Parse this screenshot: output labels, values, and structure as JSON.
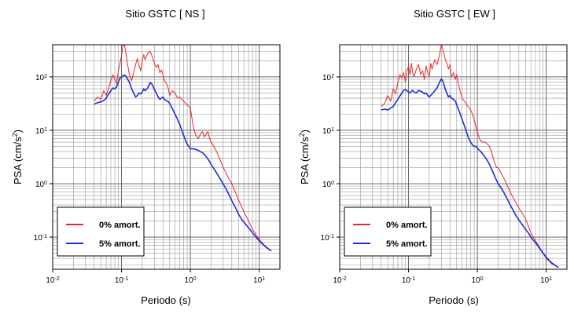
{
  "chart_data": [
    {
      "type": "line",
      "title": "Sitio GSTC [ NS ]",
      "xlabel": "Periodo (s)",
      "ylabel_main": "PSA (cm/s",
      "ylabel_sup": "2",
      "ylabel_end": ")",
      "x_scale": "log",
      "y_scale": "log",
      "xlim": [
        0.01,
        20
      ],
      "ylim": [
        0.025,
        400
      ],
      "grid": true,
      "legend_position": "bottom-left",
      "x_ticks": [
        {
          "value": 0.01,
          "base": "10",
          "exp": "-2"
        },
        {
          "value": 0.1,
          "base": "10",
          "exp": "-1"
        },
        {
          "value": 1,
          "base": "10",
          "exp": "0"
        },
        {
          "value": 10,
          "base": "10",
          "exp": "1"
        }
      ],
      "y_ticks": [
        {
          "value": 0.1,
          "base": "10",
          "exp": "-1"
        },
        {
          "value": 1,
          "base": "10",
          "exp": "0"
        },
        {
          "value": 10,
          "base": "10",
          "exp": "1"
        },
        {
          "value": 100,
          "base": "10",
          "exp": "2"
        }
      ],
      "series": [
        {
          "name": "0% amort.",
          "color": "#e8262b",
          "x": [
            0.04,
            0.045,
            0.05,
            0.055,
            0.06,
            0.065,
            0.07,
            0.075,
            0.08,
            0.085,
            0.09,
            0.095,
            0.1,
            0.105,
            0.11,
            0.115,
            0.12,
            0.13,
            0.14,
            0.15,
            0.16,
            0.17,
            0.18,
            0.19,
            0.2,
            0.21,
            0.22,
            0.24,
            0.26,
            0.28,
            0.3,
            0.32,
            0.34,
            0.36,
            0.38,
            0.4,
            0.42,
            0.45,
            0.48,
            0.5,
            0.55,
            0.6,
            0.65,
            0.7,
            0.75,
            0.8,
            0.85,
            0.9,
            0.95,
            1.0,
            1.1,
            1.2,
            1.3,
            1.4,
            1.5,
            1.6,
            1.7,
            1.8,
            1.9,
            2.0,
            2.2,
            2.4,
            2.6,
            2.8,
            3.0,
            3.3,
            3.6,
            4.0,
            4.5,
            5.0,
            5.5,
            6.0,
            7.0,
            8.0,
            9.0,
            10.0,
            12.0,
            15.0
          ],
          "y": [
            35,
            42,
            38,
            55,
            45,
            62,
            85,
            110,
            90,
            75,
            130,
            180,
            250,
            390,
            400,
            300,
            200,
            110,
            85,
            120,
            170,
            220,
            160,
            130,
            200,
            260,
            210,
            280,
            300,
            240,
            180,
            150,
            170,
            120,
            135,
            110,
            85,
            75,
            60,
            45,
            55,
            50,
            40,
            42,
            38,
            35,
            32,
            30,
            28,
            26,
            12,
            8,
            7,
            8.5,
            9.5,
            7.5,
            8.5,
            9.5,
            7,
            6,
            5,
            4,
            3.2,
            2.5,
            2.0,
            1.6,
            1.25,
            1.0,
            0.7,
            0.5,
            0.38,
            0.3,
            0.2,
            0.14,
            0.11,
            0.09,
            0.07,
            0.055
          ]
        },
        {
          "name": "5% amort.",
          "color": "#1c2fd8",
          "x": [
            0.04,
            0.045,
            0.05,
            0.055,
            0.06,
            0.065,
            0.07,
            0.075,
            0.08,
            0.085,
            0.09,
            0.095,
            0.1,
            0.105,
            0.11,
            0.115,
            0.12,
            0.13,
            0.14,
            0.15,
            0.16,
            0.17,
            0.18,
            0.19,
            0.2,
            0.21,
            0.22,
            0.24,
            0.26,
            0.28,
            0.3,
            0.32,
            0.34,
            0.36,
            0.38,
            0.4,
            0.42,
            0.45,
            0.48,
            0.5,
            0.55,
            0.6,
            0.65,
            0.7,
            0.75,
            0.8,
            0.85,
            0.9,
            0.95,
            1.0,
            1.1,
            1.2,
            1.3,
            1.4,
            1.5,
            1.6,
            1.7,
            1.8,
            1.9,
            2.0,
            2.2,
            2.4,
            2.6,
            2.8,
            3.0,
            3.3,
            3.6,
            4.0,
            4.5,
            5.0,
            5.5,
            6.0,
            7.0,
            8.0,
            9.0,
            10.0,
            12.0,
            15.0
          ],
          "y": [
            31,
            33,
            34,
            36,
            40,
            48,
            55,
            62,
            60,
            65,
            80,
            95,
            100,
            105,
            108,
            105,
            95,
            80,
            60,
            50,
            42,
            45,
            50,
            48,
            52,
            60,
            55,
            62,
            78,
            72,
            58,
            50,
            42,
            38,
            40,
            42,
            38,
            36,
            34,
            32,
            25,
            20,
            16,
            13,
            10,
            8,
            6.5,
            5.5,
            5.0,
            4.5,
            4.5,
            4.4,
            4.2,
            4.0,
            3.8,
            3.5,
            3.2,
            2.9,
            2.6,
            2.3,
            1.9,
            1.6,
            1.35,
            1.15,
            0.98,
            0.8,
            0.64,
            0.48,
            0.36,
            0.27,
            0.22,
            0.19,
            0.15,
            0.12,
            0.1,
            0.085,
            0.068,
            0.055
          ]
        }
      ]
    },
    {
      "type": "line",
      "title": "Sitio GSTC [ EW ]",
      "xlabel": "Periodo (s)",
      "ylabel_main": "PSA (cm/s",
      "ylabel_sup": "2",
      "ylabel_end": ")",
      "x_scale": "log",
      "y_scale": "log",
      "xlim": [
        0.01,
        20
      ],
      "ylim": [
        0.025,
        400
      ],
      "grid": true,
      "legend_position": "bottom-left",
      "x_ticks": [
        {
          "value": 0.01,
          "base": "10",
          "exp": "-2"
        },
        {
          "value": 0.1,
          "base": "10",
          "exp": "-1"
        },
        {
          "value": 1,
          "base": "10",
          "exp": "0"
        },
        {
          "value": 10,
          "base": "10",
          "exp": "1"
        }
      ],
      "y_ticks": [
        {
          "value": 0.1,
          "base": "10",
          "exp": "-1"
        },
        {
          "value": 1,
          "base": "10",
          "exp": "0"
        },
        {
          "value": 10,
          "base": "10",
          "exp": "1"
        },
        {
          "value": 100,
          "base": "10",
          "exp": "2"
        }
      ],
      "series": [
        {
          "name": "0% amort.",
          "color": "#e8262b",
          "x": [
            0.04,
            0.045,
            0.05,
            0.055,
            0.06,
            0.065,
            0.07,
            0.075,
            0.08,
            0.085,
            0.09,
            0.095,
            0.1,
            0.105,
            0.11,
            0.115,
            0.12,
            0.13,
            0.14,
            0.15,
            0.16,
            0.17,
            0.18,
            0.19,
            0.2,
            0.21,
            0.22,
            0.24,
            0.26,
            0.28,
            0.3,
            0.32,
            0.34,
            0.36,
            0.38,
            0.4,
            0.42,
            0.45,
            0.48,
            0.5,
            0.55,
            0.6,
            0.65,
            0.7,
            0.75,
            0.8,
            0.85,
            0.9,
            0.95,
            1.0,
            1.1,
            1.2,
            1.3,
            1.4,
            1.5,
            1.6,
            1.7,
            1.8,
            1.9,
            2.0,
            2.2,
            2.4,
            2.6,
            2.8,
            3.0,
            3.3,
            3.6,
            4.0,
            4.5,
            5.0,
            5.5,
            6.0,
            7.0,
            8.0,
            9.0,
            10.0,
            12.0,
            15.0
          ],
          "y": [
            28,
            32,
            45,
            35,
            60,
            48,
            80,
            110,
            95,
            120,
            80,
            130,
            160,
            110,
            180,
            120,
            100,
            140,
            170,
            110,
            130,
            90,
            160,
            120,
            100,
            180,
            140,
            210,
            170,
            250,
            400,
            300,
            220,
            180,
            140,
            170,
            100,
            120,
            90,
            110,
            60,
            40,
            35,
            30,
            27,
            24,
            20,
            16,
            12,
            9,
            6.5,
            6,
            6,
            5.5,
            5.0,
            4.0,
            3.0,
            2.4,
            2.0,
            2.0,
            1.6,
            1.3,
            1.05,
            0.85,
            0.7,
            0.55,
            0.45,
            0.35,
            0.28,
            0.22,
            0.16,
            0.12,
            0.085,
            0.065,
            0.05,
            0.04,
            0.032,
            0.027
          ]
        },
        {
          "name": "5% amort.",
          "color": "#1c2fd8",
          "x": [
            0.04,
            0.045,
            0.05,
            0.055,
            0.06,
            0.065,
            0.07,
            0.075,
            0.08,
            0.085,
            0.09,
            0.095,
            0.1,
            0.105,
            0.11,
            0.115,
            0.12,
            0.13,
            0.14,
            0.15,
            0.16,
            0.17,
            0.18,
            0.19,
            0.2,
            0.21,
            0.22,
            0.24,
            0.26,
            0.28,
            0.3,
            0.32,
            0.34,
            0.36,
            0.38,
            0.4,
            0.42,
            0.45,
            0.48,
            0.5,
            0.55,
            0.6,
            0.65,
            0.7,
            0.75,
            0.8,
            0.85,
            0.9,
            0.95,
            1.0,
            1.1,
            1.2,
            1.3,
            1.4,
            1.5,
            1.6,
            1.7,
            1.8,
            1.9,
            2.0,
            2.2,
            2.4,
            2.6,
            2.8,
            3.0,
            3.3,
            3.6,
            4.0,
            4.5,
            5.0,
            5.5,
            6.0,
            7.0,
            8.0,
            9.0,
            10.0,
            12.0,
            15.0
          ],
          "y": [
            24,
            25,
            24,
            26,
            28,
            33,
            38,
            44,
            50,
            56,
            58,
            55,
            52,
            50,
            54,
            56,
            52,
            50,
            56,
            54,
            52,
            48,
            50,
            45,
            42,
            45,
            48,
            55,
            62,
            78,
            92,
            80,
            60,
            50,
            42,
            45,
            40,
            38,
            35,
            30,
            22,
            16,
            12,
            9,
            7,
            6,
            5.3,
            5.0,
            5.0,
            4.6,
            4.1,
            3.6,
            3.1,
            2.7,
            2.3,
            1.9,
            1.6,
            1.35,
            1.15,
            1.0,
            0.85,
            0.7,
            0.58,
            0.48,
            0.4,
            0.32,
            0.26,
            0.21,
            0.17,
            0.14,
            0.12,
            0.1,
            0.078,
            0.062,
            0.05,
            0.042,
            0.033,
            0.027
          ]
        }
      ]
    }
  ]
}
